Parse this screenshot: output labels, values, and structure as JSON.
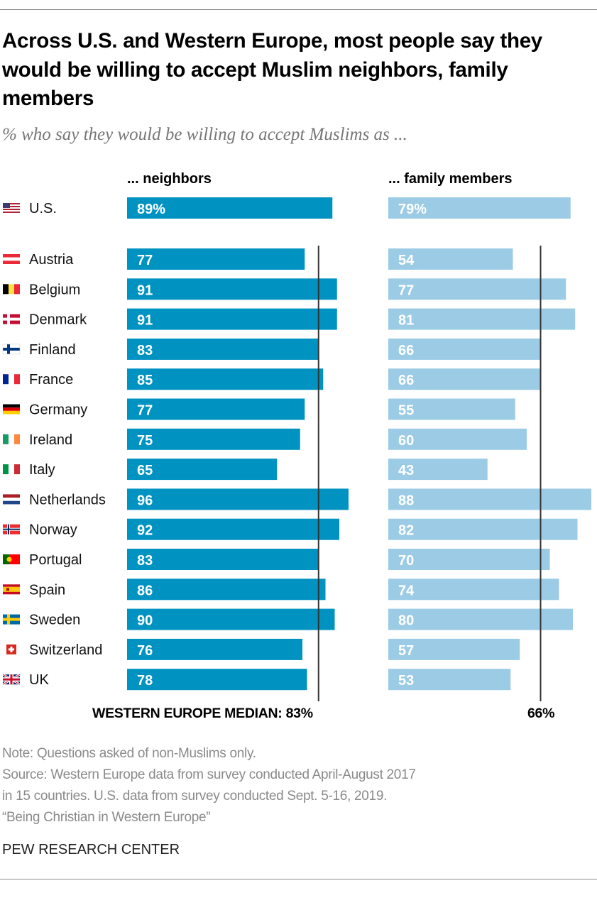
{
  "title": "Across U.S. and Western Europe, most people say they would be willing to accept Muslim neighbors, family members",
  "subtitle": "% who say they would be willing to accept Muslims as ...",
  "colors": {
    "neighbors": "#0092c1",
    "family": "#9ccbe6",
    "median_line": "#333333"
  },
  "chart_data": {
    "type": "bar",
    "orientation": "horizontal",
    "title": "Across U.S. and Western Europe, most people say they would be willing to accept Muslim neighbors, family members",
    "subtitle": "% who say they would be willing to accept Muslims as ...",
    "categories": [
      "U.S.",
      "Austria",
      "Belgium",
      "Denmark",
      "Finland",
      "France",
      "Germany",
      "Ireland",
      "Italy",
      "Netherlands",
      "Norway",
      "Portugal",
      "Spain",
      "Sweden",
      "Switzerland",
      "UK"
    ],
    "flags": [
      "us-flag-icon",
      "austria-flag-icon",
      "belgium-flag-icon",
      "denmark-flag-icon",
      "finland-flag-icon",
      "france-flag-icon",
      "germany-flag-icon",
      "ireland-flag-icon",
      "italy-flag-icon",
      "netherlands-flag-icon",
      "norway-flag-icon",
      "portugal-flag-icon",
      "spain-flag-icon",
      "sweden-flag-icon",
      "switzerland-flag-icon",
      "uk-flag-icon"
    ],
    "series": [
      {
        "name": "... neighbors",
        "values": [
          89,
          77,
          91,
          91,
          83,
          85,
          77,
          75,
          65,
          96,
          92,
          83,
          86,
          90,
          76,
          78
        ]
      },
      {
        "name": "... family members",
        "values": [
          79,
          54,
          77,
          81,
          66,
          66,
          55,
          60,
          43,
          88,
          82,
          70,
          74,
          80,
          57,
          53
        ]
      }
    ],
    "value_labels": [
      [
        "89%",
        "77",
        "91",
        "91",
        "83",
        "85",
        "77",
        "75",
        "65",
        "96",
        "92",
        "83",
        "86",
        "90",
        "76",
        "78"
      ],
      [
        "79%",
        "54",
        "77",
        "81",
        "66",
        "66",
        "55",
        "60",
        "43",
        "88",
        "82",
        "70",
        "74",
        "80",
        "57",
        "53"
      ]
    ],
    "medians": {
      "label": "WESTERN EUROPE MEDIAN: 83%",
      "neighbors": 83,
      "family_label": "66%",
      "family": 66
    },
    "xlim": [
      0,
      100
    ],
    "grid": false
  },
  "notes": [
    "Note: Questions asked of non-Muslims only.",
    "Source: Western Europe data from survey conducted April-August 2017",
    "in 15 countries. U.S. data from survey conducted Sept. 5-16, 2019.",
    "“Being Christian in Western Europe”"
  ],
  "brand": "PEW RESEARCH CENTER"
}
